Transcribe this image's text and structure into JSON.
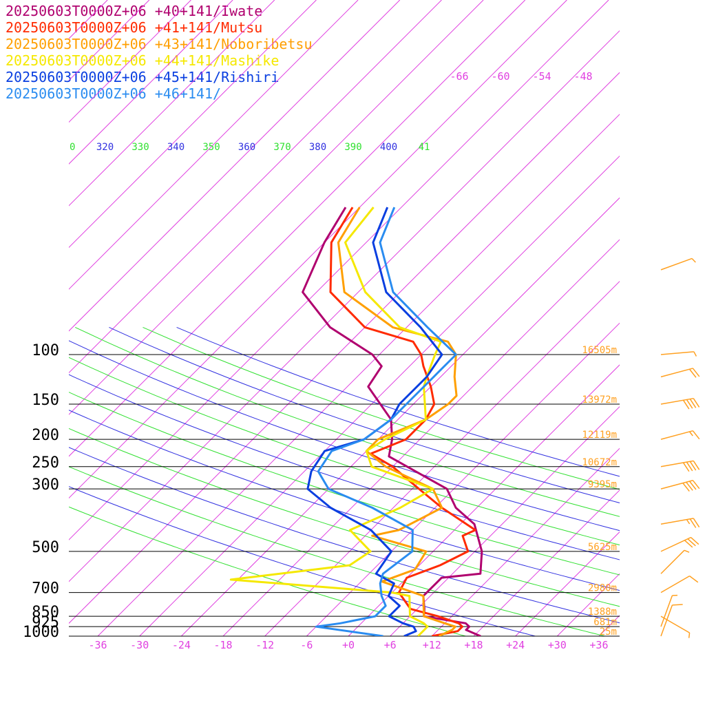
{
  "legend": [
    {
      "label": "20250603T0000Z+06 +40+141/Iwate",
      "color": "#b0006e"
    },
    {
      "label": "20250603T0000Z+06 +41+141/Mutsu",
      "color": "#ff2a00"
    },
    {
      "label": "20250603T0000Z+06 +43+141/Noboribetsu",
      "color": "#ff9f00"
    },
    {
      "label": "20250603T0000Z+06 +44+141/Mashike",
      "color": "#f5e800"
    },
    {
      "label": "20250603T0000Z+06 +45+141/Rishiri",
      "color": "#0a3fe0"
    },
    {
      "label": "20250603T0000Z+06 +46+141/",
      "color": "#2a8cf0"
    }
  ],
  "chart_data": {
    "type": "line",
    "subtype": "skew-T log-P sounding",
    "x_ticks": [
      "-36",
      "-30",
      "-24",
      "-18",
      "-12",
      "-6",
      "+0",
      "+6",
      "+12",
      "+18",
      "+24",
      "+30",
      "+36"
    ],
    "pressure_levels": [
      {
        "p": 100,
        "label": "100",
        "height": "16505m"
      },
      {
        "p": 150,
        "label": "150",
        "height": "13972m"
      },
      {
        "p": 200,
        "label": "200",
        "height": "12119m"
      },
      {
        "p": 250,
        "label": "250",
        "height": "10672m"
      },
      {
        "p": 300,
        "label": "300",
        "height": "9395m"
      },
      {
        "p": 500,
        "label": "500",
        "height": "5625m"
      },
      {
        "p": 700,
        "label": "700",
        "height": "2980m"
      },
      {
        "p": 850,
        "label": "850",
        "height": "1388m"
      },
      {
        "p": 925,
        "label": "925",
        "height": "681m"
      },
      {
        "p": 1000,
        "label": "1000",
        "height": "25m"
      }
    ],
    "theta_labels": [
      "0",
      "320",
      "330",
      "340",
      "350",
      "360",
      "370",
      "380",
      "390",
      "400",
      "41"
    ],
    "isotherm_top_labels": [
      "-66",
      "-60",
      "-54",
      "-48"
    ],
    "colors": {
      "isotherm": "#e040e0",
      "theta_green": "#30e030",
      "theta_blue": "#3030e0",
      "height_label": "#ffa020",
      "wind_barb": "#ffa020",
      "isobar": "#000000"
    },
    "series": [
      {
        "name": "20250603T0000Z+06 +40+141/Iwate",
        "color": "#b0006e",
        "points": [
          [
            1000,
            19
          ],
          [
            950,
            16
          ],
          [
            925,
            16
          ],
          [
            900,
            15
          ],
          [
            850,
            8
          ],
          [
            800,
            7
          ],
          [
            720,
            5
          ],
          [
            620,
            5
          ],
          [
            600,
            10
          ],
          [
            500,
            7
          ],
          [
            400,
            2
          ],
          [
            350,
            -3
          ],
          [
            300,
            -7
          ],
          [
            260,
            -14
          ],
          [
            230,
            -20
          ],
          [
            200,
            -22
          ],
          [
            170,
            -25
          ],
          [
            130,
            -33
          ],
          [
            110,
            -34
          ],
          [
            100,
            -37
          ],
          [
            80,
            -47
          ],
          [
            60,
            -56
          ],
          [
            40,
            -60
          ],
          [
            30,
            -62
          ]
        ]
      },
      {
        "name": "20250603T0000Z+06 +41+141/Mutsu",
        "color": "#ff2a00",
        "points": [
          [
            1000,
            12
          ],
          [
            960,
            15
          ],
          [
            925,
            15
          ],
          [
            900,
            14
          ],
          [
            850,
            10
          ],
          [
            800,
            5
          ],
          [
            700,
            1
          ],
          [
            620,
            0
          ],
          [
            560,
            3
          ],
          [
            500,
            5
          ],
          [
            440,
            2
          ],
          [
            420,
            3
          ],
          [
            350,
            -5
          ],
          [
            300,
            -11
          ],
          [
            250,
            -18
          ],
          [
            225,
            -23
          ],
          [
            200,
            -20
          ],
          [
            170,
            -20
          ],
          [
            150,
            -21
          ],
          [
            130,
            -24
          ],
          [
            110,
            -28
          ],
          [
            100,
            -30
          ],
          [
            90,
            -33
          ],
          [
            80,
            -42
          ],
          [
            60,
            -52
          ],
          [
            40,
            -59
          ],
          [
            30,
            -61
          ]
        ]
      },
      {
        "name": "20250603T0000Z+06 +43+141/Noboribetsu",
        "color": "#ff9f00",
        "points": [
          [
            1000,
            13
          ],
          [
            950,
            14
          ],
          [
            925,
            14
          ],
          [
            900,
            12
          ],
          [
            850,
            8
          ],
          [
            720,
            5
          ],
          [
            640,
            -3
          ],
          [
            580,
            0
          ],
          [
            500,
            -1
          ],
          [
            440,
            -11
          ],
          [
            420,
            -8
          ],
          [
            350,
            -5
          ],
          [
            300,
            -9
          ],
          [
            250,
            -19
          ],
          [
            220,
            -24
          ],
          [
            200,
            -24
          ],
          [
            170,
            -20
          ],
          [
            150,
            -19
          ],
          [
            140,
            -19
          ],
          [
            120,
            -22
          ],
          [
            100,
            -25
          ],
          [
            90,
            -28
          ],
          [
            80,
            -38
          ],
          [
            60,
            -50
          ],
          [
            40,
            -58
          ],
          [
            30,
            -60
          ]
        ]
      },
      {
        "name": "20250603T0000Z+06 +44+141/Mashike",
        "color": "#f5e800",
        "points": [
          [
            1000,
            10
          ],
          [
            950,
            10
          ],
          [
            925,
            10
          ],
          [
            900,
            9
          ],
          [
            850,
            6
          ],
          [
            720,
            3
          ],
          [
            700,
            0
          ],
          [
            630,
            -25
          ],
          [
            560,
            -10
          ],
          [
            500,
            -9
          ],
          [
            420,
            -15
          ],
          [
            350,
            -11
          ],
          [
            300,
            -9
          ],
          [
            250,
            -21
          ],
          [
            220,
            -24
          ],
          [
            200,
            -23
          ],
          [
            170,
            -20
          ],
          [
            130,
            -25
          ],
          [
            120,
            -26
          ],
          [
            100,
            -28
          ],
          [
            90,
            -29
          ],
          [
            80,
            -37
          ],
          [
            60,
            -47
          ],
          [
            40,
            -57
          ],
          [
            30,
            -58
          ]
        ]
      },
      {
        "name": "20250603T0000Z+06 +45+141/Rishiri",
        "color": "#0a3fe0",
        "points": [
          [
            1000,
            8
          ],
          [
            960,
            9
          ],
          [
            925,
            8
          ],
          [
            900,
            6
          ],
          [
            850,
            3
          ],
          [
            780,
            3
          ],
          [
            720,
            0
          ],
          [
            650,
            -1
          ],
          [
            600,
            -5
          ],
          [
            500,
            -6
          ],
          [
            420,
            -12
          ],
          [
            350,
            -21
          ],
          [
            300,
            -27
          ],
          [
            260,
            -29
          ],
          [
            220,
            -30
          ],
          [
            200,
            -26
          ],
          [
            170,
            -25
          ],
          [
            150,
            -26
          ],
          [
            120,
            -26
          ],
          [
            100,
            -27
          ],
          [
            80,
            -34
          ],
          [
            60,
            -44
          ],
          [
            40,
            -53
          ],
          [
            30,
            -56
          ]
        ]
      },
      {
        "name": "20250603T0000Z+06 +46+141/",
        "color": "#2a8cf0",
        "points": [
          [
            1000,
            5
          ],
          [
            925,
            -6
          ],
          [
            900,
            -3
          ],
          [
            850,
            1
          ],
          [
            780,
            1
          ],
          [
            720,
            -1
          ],
          [
            650,
            -3
          ],
          [
            600,
            -4
          ],
          [
            500,
            -3
          ],
          [
            420,
            -6
          ],
          [
            350,
            -15
          ],
          [
            300,
            -24
          ],
          [
            260,
            -28
          ],
          [
            220,
            -29
          ],
          [
            200,
            -26
          ],
          [
            170,
            -25
          ],
          [
            150,
            -25
          ],
          [
            120,
            -25
          ],
          [
            100,
            -25
          ],
          [
            80,
            -33
          ],
          [
            60,
            -43
          ],
          [
            40,
            -52
          ],
          [
            30,
            -55
          ]
        ]
      }
    ],
    "wind_barbs": [
      {
        "p": 1000,
        "speed_kt": 10,
        "dir": 200
      },
      {
        "p": 925,
        "speed_kt": 5,
        "dir": 200
      },
      {
        "p": 850,
        "speed_kt": 5,
        "dir": 300
      },
      {
        "p": 700,
        "speed_kt": 10,
        "dir": 240
      },
      {
        "p": 600,
        "speed_kt": 5,
        "dir": 225
      },
      {
        "p": 500,
        "speed_kt": 30,
        "dir": 245
      },
      {
        "p": 400,
        "speed_kt": 25,
        "dir": 260
      },
      {
        "p": 300,
        "speed_kt": 40,
        "dir": 255
      },
      {
        "p": 250,
        "speed_kt": 40,
        "dir": 260
      },
      {
        "p": 200,
        "speed_kt": 15,
        "dir": 255
      },
      {
        "p": 150,
        "speed_kt": 40,
        "dir": 260
      },
      {
        "p": 120,
        "speed_kt": 20,
        "dir": 255
      },
      {
        "p": 100,
        "speed_kt": 5,
        "dir": 265
      },
      {
        "p": 50,
        "speed_kt": 5,
        "dir": 250
      }
    ]
  }
}
